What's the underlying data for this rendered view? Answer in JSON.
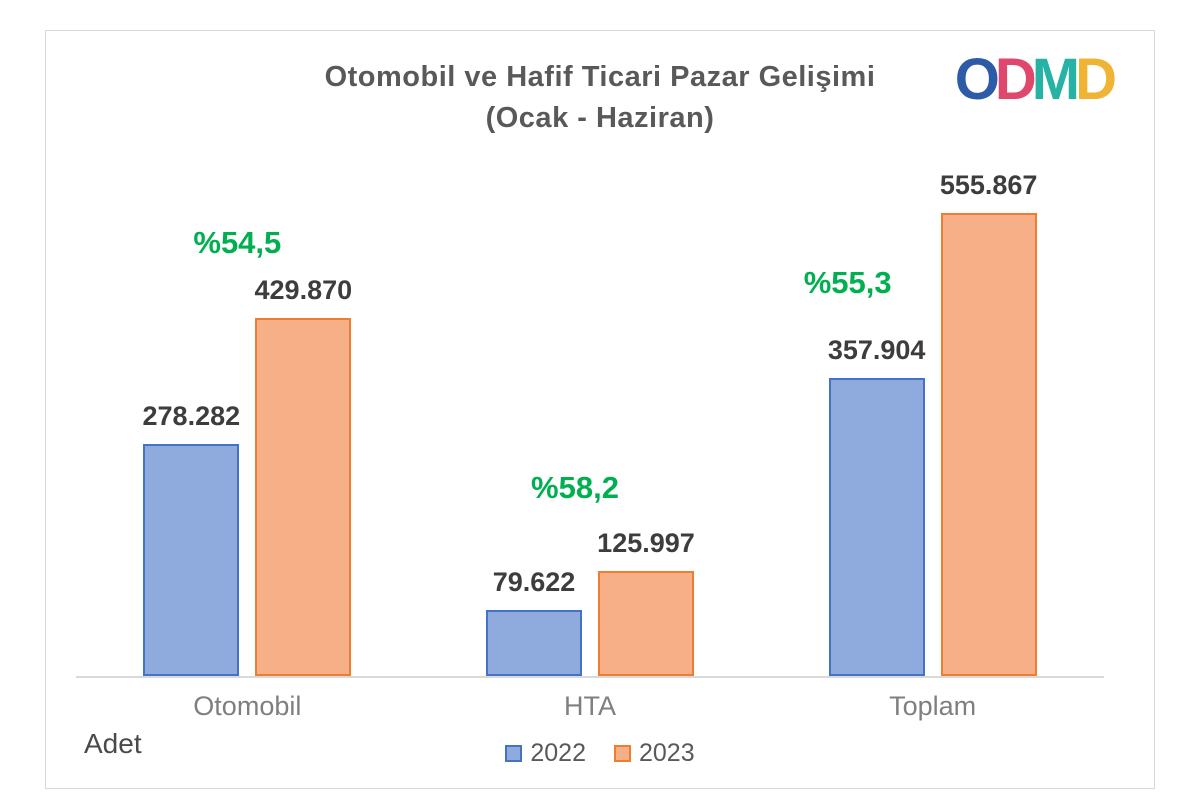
{
  "title": {
    "line1": "Otomobil ve Hafif Ticari Pazar Gelişimi",
    "line2": "(Ocak - Haziran)"
  },
  "logo": {
    "text": "ODMD",
    "letters": [
      {
        "char": "O",
        "color": "#2d5ba6"
      },
      {
        "char": "D",
        "color": "#e0476c"
      },
      {
        "char": "M",
        "color": "#27b3a4"
      },
      {
        "char": "D",
        "color": "#f0b434"
      }
    ]
  },
  "axis": {
    "unit_label": "Adet"
  },
  "chart_data": {
    "type": "bar",
    "title": "Otomobil ve Hafif Ticari Pazar Gelişimi (Ocak - Haziran)",
    "categories": [
      "Otomobil",
      "HTA",
      "Toplam"
    ],
    "series": [
      {
        "name": "2022",
        "values": [
          278282,
          79622,
          357904
        ],
        "value_labels": [
          "278.282",
          "79.622",
          "357.904"
        ],
        "fill": "#8FAADC",
        "border": "#4472C4"
      },
      {
        "name": "2023",
        "values": [
          429870,
          125997,
          555867
        ],
        "value_labels": [
          "429.870",
          "125.997",
          "555.867"
        ],
        "fill": "#F7AF88",
        "border": "#ED7D31"
      }
    ],
    "growth_labels": [
      {
        "text": "%54,5"
      },
      {
        "text": "%58,2"
      },
      {
        "text": "%55,3"
      }
    ],
    "growth_color": "#00B050",
    "xlabel": "",
    "ylabel": "Adet",
    "ylim": [
      0,
      570000
    ],
    "grid": false,
    "legend_position": "bottom"
  }
}
